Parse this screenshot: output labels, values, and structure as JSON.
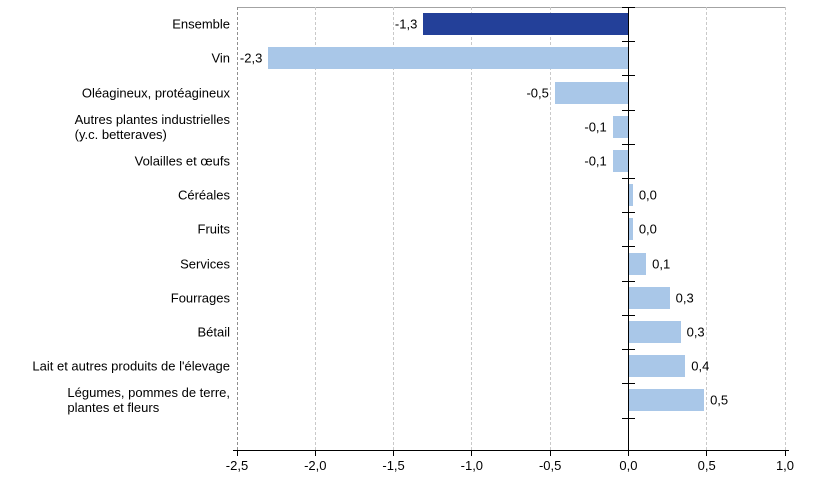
{
  "chart_data": {
    "type": "bar",
    "orientation": "horizontal",
    "title": "",
    "xlabel": "",
    "ylabel": "",
    "legend": "none",
    "grid": "vertical-dashed",
    "categories": [
      "Ensemble",
      "Vin",
      "Oléagineux, protéagineux",
      "Autres plantes industrielles (y.c. betteraves)",
      "Volailles et œufs",
      "Céréales",
      "Fruits",
      "Services",
      "Fourrages",
      "Bétail",
      "Lait et autres produits de l'élevage",
      "Légumes, pommes de terre, plantes et fleurs"
    ],
    "category_lines": [
      [
        "Ensemble"
      ],
      [
        "Vin"
      ],
      [
        "Oléagineux, protéagineux"
      ],
      [
        "Autres plantes industrielles",
        "(y.c. betteraves)"
      ],
      [
        "Volailles et œufs"
      ],
      [
        "Céréales"
      ],
      [
        "Fruits"
      ],
      [
        "Services"
      ],
      [
        "Fourrages"
      ],
      [
        "Bétail"
      ],
      [
        "Lait et autres produits de l'élevage"
      ],
      [
        "Légumes, pommes de terre,",
        "plantes et fleurs"
      ]
    ],
    "values": [
      -1.3,
      -2.3,
      -0.5,
      -0.1,
      -0.1,
      0.0,
      0.0,
      0.1,
      0.3,
      0.3,
      0.4,
      0.5
    ],
    "value_labels": [
      "-1,3",
      "-2,3",
      "-0,5",
      "-0,1",
      "-0,1",
      "0,0",
      "0,0",
      "0,1",
      "0,3",
      "0,3",
      "0,4",
      "0,5"
    ],
    "bar_lengths_est": [
      -1.31,
      -2.3,
      -0.47,
      -0.1,
      -0.1,
      0.025,
      0.025,
      0.11,
      0.26,
      0.33,
      0.36,
      0.48
    ],
    "highlight_index": 0,
    "xlim": [
      -2.5,
      1.0
    ],
    "xtick_values": [
      -2.5,
      -2.0,
      -1.5,
      -1.0,
      -0.5,
      0.0,
      0.5,
      1.0
    ],
    "xticks": [
      "-2,5",
      "-2,0",
      "-1,5",
      "-1,0",
      "-0,5",
      "0,0",
      "0,5",
      "1,0"
    ],
    "colors": {
      "highlight_bar": "#234099",
      "bar": "#A9C7E8",
      "gridline": "#c9c9c9",
      "gridline_left": "#8f8f8f",
      "plot_top_border": "#a3a3a3",
      "axis": "#000000",
      "text": "#000000",
      "background": "#ffffff"
    }
  }
}
